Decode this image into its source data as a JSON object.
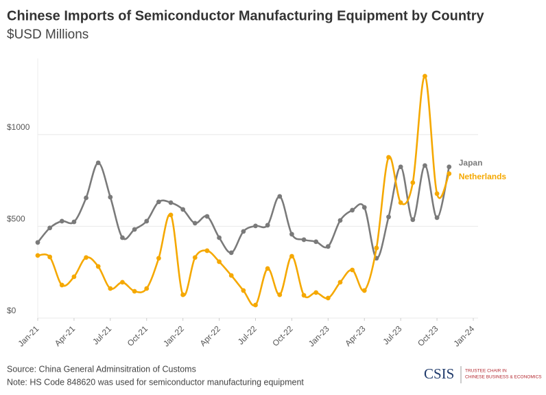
{
  "chart_data": {
    "type": "line",
    "title": "Chinese Imports of Semiconductor Manufacturing Equipment by Country",
    "subtitle": "$USD Millions",
    "x": [
      "2021-01",
      "2021-02",
      "2021-03",
      "2021-04",
      "2021-05",
      "2021-06",
      "2021-07",
      "2021-08",
      "2021-09",
      "2021-10",
      "2021-11",
      "2021-12",
      "2022-01",
      "2022-02",
      "2022-03",
      "2022-04",
      "2022-05",
      "2022-06",
      "2022-07",
      "2022-08",
      "2022-09",
      "2022-10",
      "2022-11",
      "2022-12",
      "2023-01",
      "2023-02",
      "2023-03",
      "2023-04",
      "2023-05",
      "2023-06",
      "2023-07",
      "2023-08",
      "2023-09",
      "2023-10",
      "2023-11"
    ],
    "series": [
      {
        "name": "Japan",
        "color": "#7a7a7a",
        "values": [
          412,
          491,
          528,
          524,
          655,
          846,
          659,
          438,
          483,
          528,
          633,
          629,
          592,
          517,
          554,
          438,
          356,
          472,
          502,
          506,
          663,
          457,
          427,
          416,
          390,
          532,
          588,
          603,
          326,
          551,
          824,
          536,
          831,
          547,
          824
        ]
      },
      {
        "name": "Netherlands",
        "color": "#f5a800",
        "values": [
          341,
          333,
          180,
          225,
          330,
          281,
          161,
          195,
          146,
          161,
          326,
          562,
          127,
          330,
          367,
          307,
          232,
          150,
          71,
          270,
          127,
          337,
          124,
          139,
          109,
          195,
          262,
          150,
          382,
          876,
          629,
          738,
          1318,
          678,
          787
        ]
      }
    ],
    "xlim": [
      "2021-01",
      "2024-01"
    ],
    "xticks": [
      {
        "value": "2021-01",
        "label": "Jan-21"
      },
      {
        "value": "2021-04",
        "label": "Apr-21"
      },
      {
        "value": "2021-07",
        "label": "Jul-21"
      },
      {
        "value": "2021-10",
        "label": "Oct-21"
      },
      {
        "value": "2022-01",
        "label": "Jan-22"
      },
      {
        "value": "2022-04",
        "label": "Apr-22"
      },
      {
        "value": "2022-07",
        "label": "Jul-22"
      },
      {
        "value": "2022-10",
        "label": "Oct-22"
      },
      {
        "value": "2023-01",
        "label": "Jan-23"
      },
      {
        "value": "2023-04",
        "label": "Apr-23"
      },
      {
        "value": "2023-07",
        "label": "Jul-23"
      },
      {
        "value": "2023-10",
        "label": "Oct-23"
      },
      {
        "value": "2024-01",
        "label": "Jan-24"
      }
    ],
    "ylim": [
      0,
      1400
    ],
    "yticks": [
      {
        "value": 0,
        "label": "$0"
      },
      {
        "value": 500,
        "label": "$500"
      },
      {
        "value": 1000,
        "label": "$1000"
      }
    ],
    "grid": true,
    "source": "Source: China General Adminsitration of Customs",
    "note": "Note: HS Code 848620 was used for semiconductor manufacturing equipment",
    "logo": {
      "name": "CSIS",
      "lines": [
        "TRUSTEE CHAIR IN",
        "CHINESE BUSINESS & ECONOMICS"
      ]
    }
  }
}
